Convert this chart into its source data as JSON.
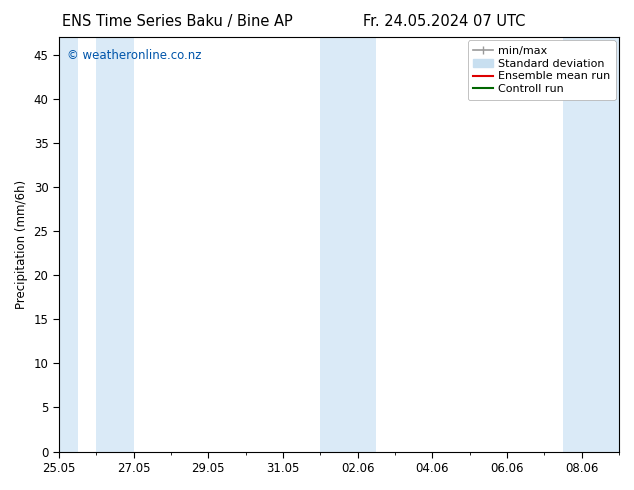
{
  "title_left": "ENS Time Series Baku / Bine AP",
  "title_right": "Fr. 24.05.2024 07 UTC",
  "ylabel": "Precipitation (mm/6h)",
  "watermark": "© weatheronline.co.nz",
  "watermark_color": "#0055aa",
  "background_color": "#ffffff",
  "plot_bg_color": "#ffffff",
  "ylim": [
    0,
    47
  ],
  "yticks": [
    0,
    5,
    10,
    15,
    20,
    25,
    30,
    35,
    40,
    45
  ],
  "xtick_labels": [
    "25.05",
    "27.05",
    "29.05",
    "31.05",
    "02.06",
    "04.06",
    "06.06",
    "08.06"
  ],
  "xtick_positions": [
    0,
    2,
    4,
    6,
    8,
    10,
    12,
    14
  ],
  "shaded_bands": [
    [
      0.0,
      0.5
    ],
    [
      1.0,
      2.0
    ],
    [
      7.0,
      8.5
    ],
    [
      13.5,
      15.0
    ]
  ],
  "shaded_color": "#daeaf7",
  "legend_items": [
    {
      "label": "min/max",
      "color": "#999999",
      "lw": 1.2,
      "style": "caps"
    },
    {
      "label": "Standard deviation",
      "color": "#c8dff0",
      "lw": 8,
      "style": "bar"
    },
    {
      "label": "Ensemble mean run",
      "color": "#dd0000",
      "lw": 1.5,
      "style": "line"
    },
    {
      "label": "Controll run",
      "color": "#006600",
      "lw": 1.5,
      "style": "line"
    }
  ],
  "font_size": 8.5,
  "title_font_size": 10.5,
  "total_days": 15
}
